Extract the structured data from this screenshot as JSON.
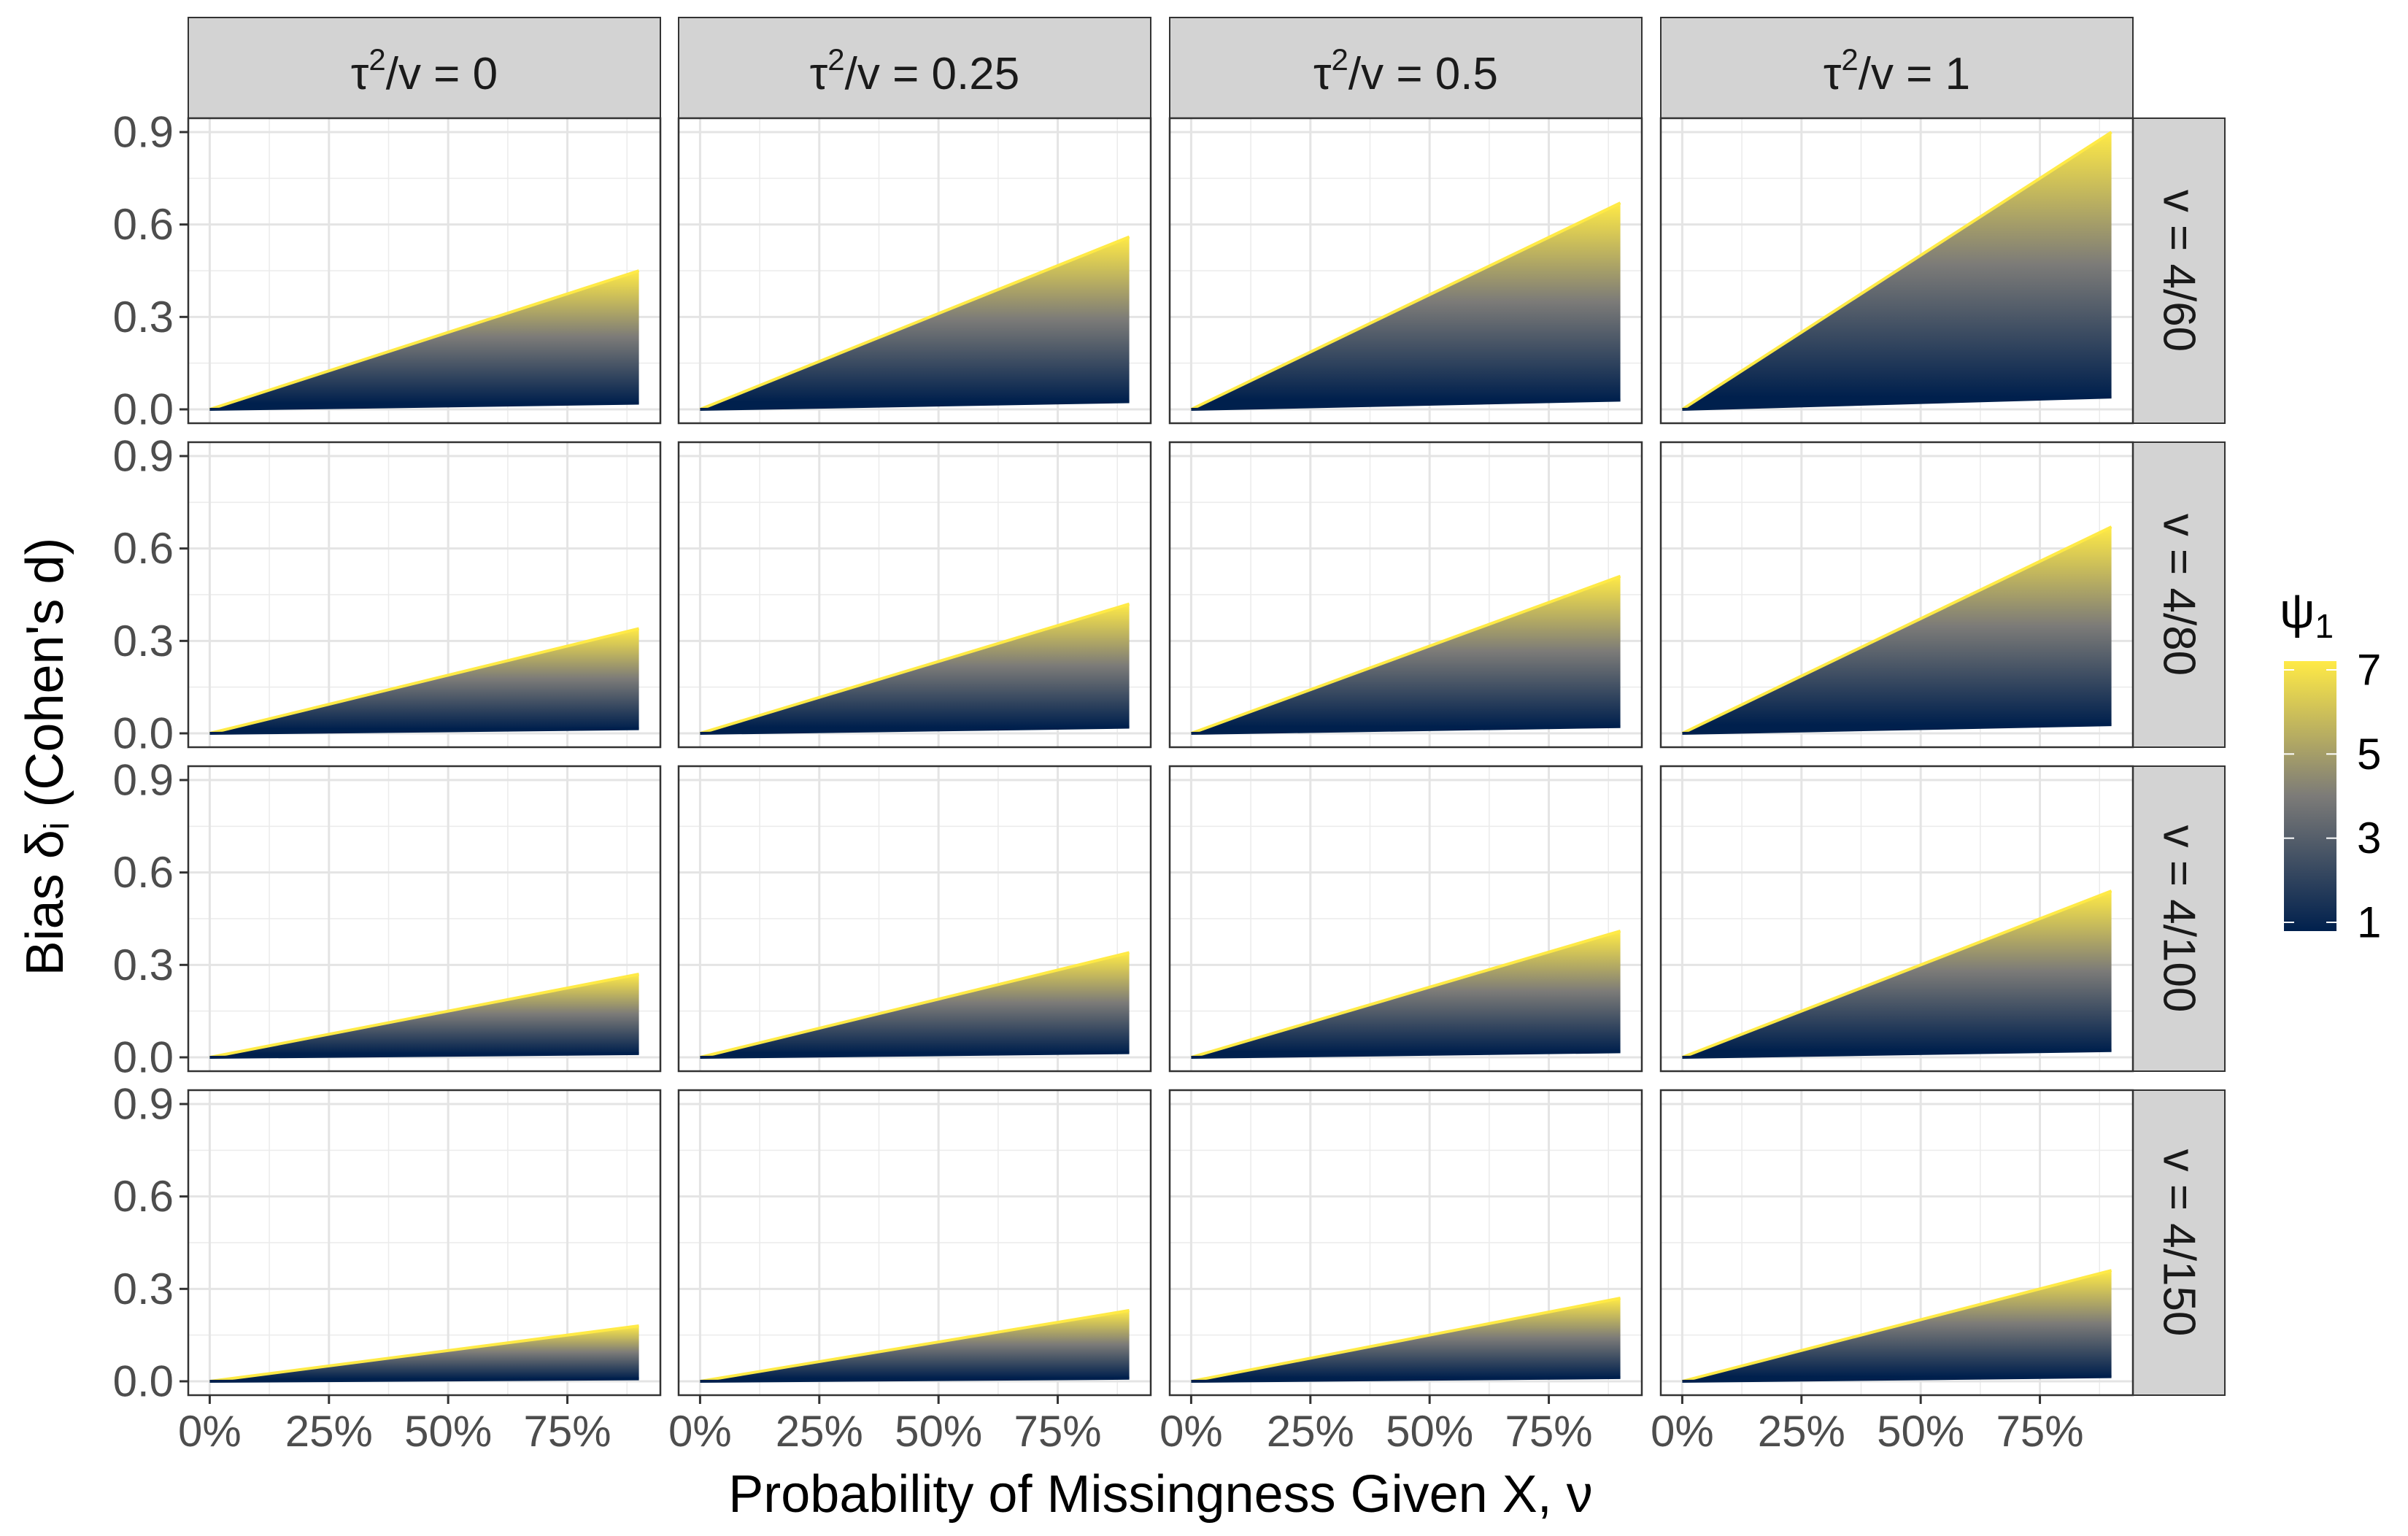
{
  "chart_data": {
    "type": "area",
    "ylabel": "Bias δ",
    "ylabel_sub": "i",
    "ylabel_suffix": " (Cohen's d)",
    "xlabel": "Probability of Missingness Given X, ν",
    "x_ticks": [
      "0%",
      "25%",
      "50%",
      "75%"
    ],
    "x_tick_values": [
      0,
      0.25,
      0.5,
      0.75
    ],
    "xlim": [
      -0.045,
      0.945
    ],
    "y_ticks": [
      "0.0",
      "0.3",
      "0.6",
      "0.9"
    ],
    "y_tick_values": [
      0,
      0.3,
      0.6,
      0.9
    ],
    "ylim": [
      -0.045,
      0.945
    ],
    "grid": true,
    "col_facets": [
      {
        "prefix": "τ",
        "sup": "2",
        "suffix": "/v = 0"
      },
      {
        "prefix": "τ",
        "sup": "2",
        "suffix": "/v = 0.25"
      },
      {
        "prefix": "τ",
        "sup": "2",
        "suffix": "/v = 0.5"
      },
      {
        "prefix": "τ",
        "sup": "2",
        "suffix": "/v = 1"
      }
    ],
    "row_facets": [
      "v = 4/60",
      "v = 4/80",
      "v = 4/100",
      "v = 4/150"
    ],
    "x_range": [
      0,
      0.9
    ],
    "bias_at_max_x": {
      "description_rows": "rows correspond to row_facets, columns to col_facets; [lower (ψ1=1), upper (ψ1=7)] bias at ν = 0.9",
      "lower": [
        [
          0.02,
          0.025,
          0.03,
          0.04
        ],
        [
          0.015,
          0.02,
          0.022,
          0.028
        ],
        [
          0.012,
          0.015,
          0.018,
          0.022
        ],
        [
          0.008,
          0.01,
          0.012,
          0.015
        ]
      ],
      "upper": [
        [
          0.45,
          0.56,
          0.67,
          0.9
        ],
        [
          0.34,
          0.42,
          0.51,
          0.67
        ],
        [
          0.27,
          0.34,
          0.41,
          0.54
        ],
        [
          0.18,
          0.23,
          0.27,
          0.36
        ]
      ]
    },
    "legend": {
      "title": "ψ",
      "title_sub": "1",
      "labels": [
        "7",
        "5",
        "3",
        "1"
      ],
      "values": [
        7,
        5,
        3,
        1
      ],
      "range": [
        1,
        7
      ],
      "color_low": "#00204d",
      "color_mid": "#7c7b78",
      "color_high": "#ffea46",
      "placement": "right"
    }
  }
}
